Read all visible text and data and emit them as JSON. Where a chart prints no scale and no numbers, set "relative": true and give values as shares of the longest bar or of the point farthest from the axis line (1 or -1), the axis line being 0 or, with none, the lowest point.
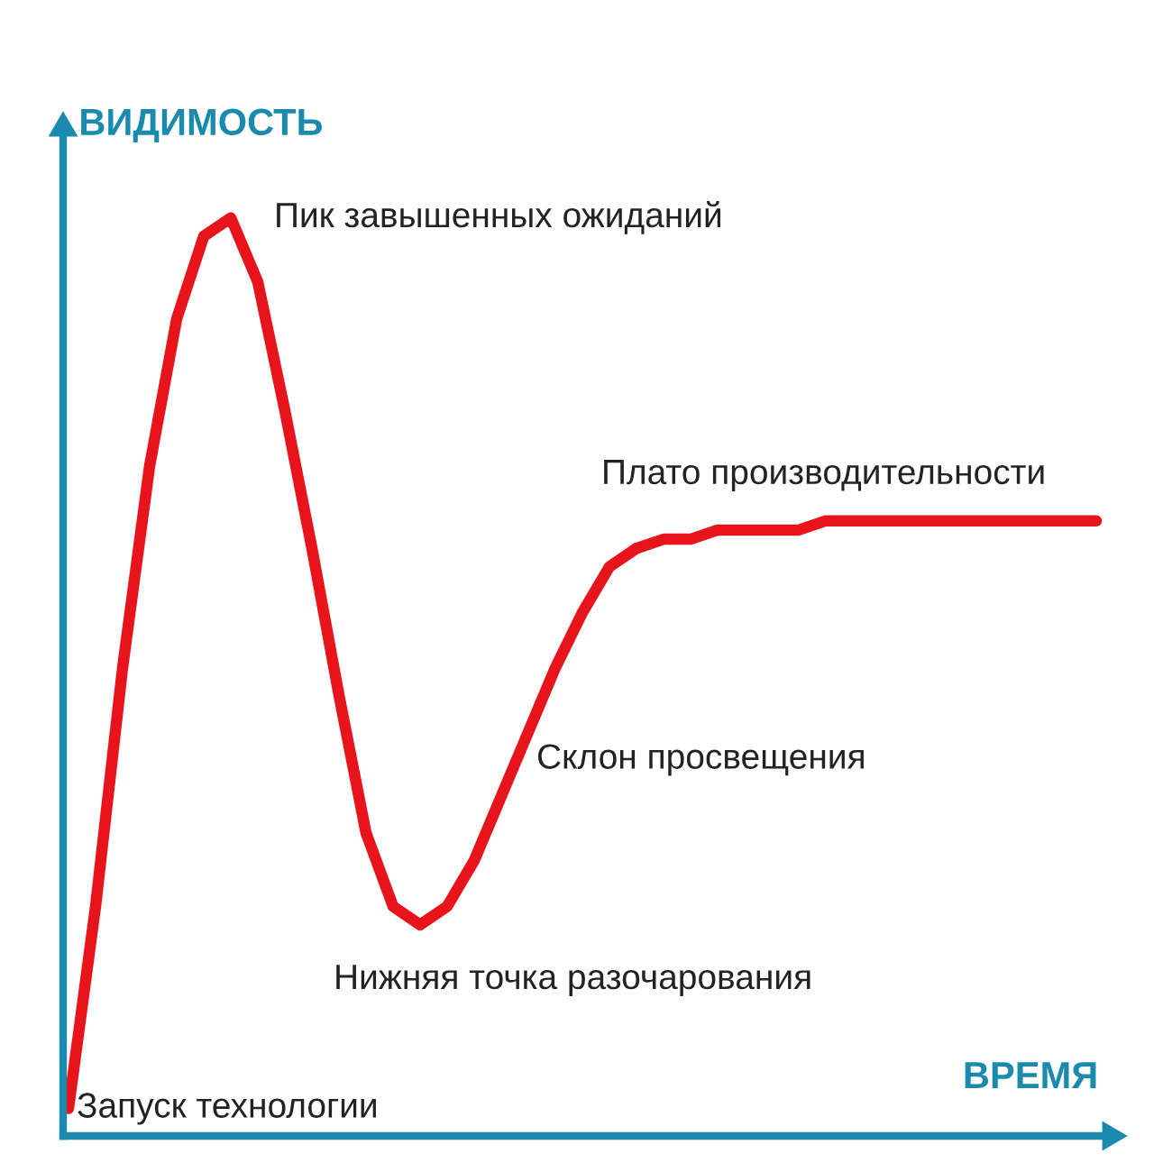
{
  "chart_data": {
    "type": "line",
    "relative": true,
    "xlabel": "ВРЕМЯ",
    "ylabel": "ВИДИМОСТЬ",
    "legend": false,
    "marker": "none",
    "line_style": "solid",
    "categories": [
      null,
      null,
      null,
      null,
      null,
      null,
      null,
      null,
      null,
      null,
      null,
      null,
      null,
      null,
      null,
      null,
      null,
      null,
      null,
      null,
      null,
      null,
      null,
      null,
      null,
      null,
      null,
      null,
      null,
      null,
      null,
      null,
      null,
      null,
      null,
      null,
      null,
      null,
      null
    ],
    "series": [
      {
        "color": "#e8141c",
        "values": [
          0.03,
          0.25,
          0.51,
          0.73,
          0.89,
          0.98,
          1.0,
          0.93,
          0.79,
          0.64,
          0.48,
          0.33,
          0.25,
          0.23,
          0.25,
          0.3,
          0.37,
          0.44,
          0.51,
          0.57,
          0.62,
          0.64,
          0.65,
          0.65,
          0.66,
          0.66,
          0.66,
          0.66,
          0.67,
          0.67,
          0.67,
          0.67,
          0.67,
          0.67,
          0.67,
          0.67,
          0.67,
          0.67,
          0.67
        ]
      }
    ],
    "annotations": [
      "Запуск технологии",
      "Пик завышенных ожиданий",
      "Нижняя точка разочарования",
      "Склон просвещения",
      "Плато производительности"
    ]
  }
}
